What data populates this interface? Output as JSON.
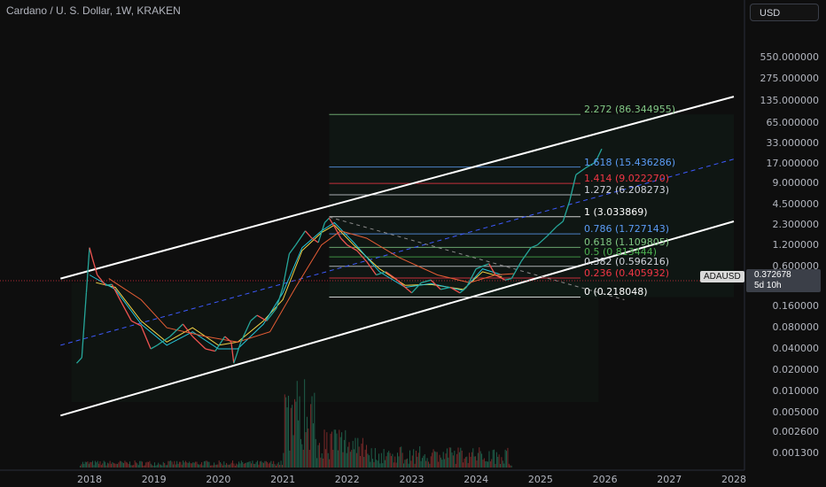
{
  "header": {
    "title": "Cardano / U. S. Dollar, 1W, KRAKEN",
    "currency_button": "USD"
  },
  "price_scale": {
    "ticks": [
      "550.000000",
      "275.000000",
      "135.000000",
      "65.000000",
      "33.000000",
      "17.000000",
      "9.000000",
      "4.500000",
      "2.300000",
      "1.200000",
      "0.600000",
      "0.160000",
      "0.080000",
      "0.040000",
      "0.020000",
      "0.010000",
      "0.005000",
      "0.002600",
      "0.001300"
    ]
  },
  "time_axis": {
    "ticks": [
      "2018",
      "2019",
      "2020",
      "2021",
      "2022",
      "2023",
      "2024",
      "2025",
      "2026",
      "2027",
      "2028"
    ]
  },
  "fib_levels": [
    {
      "ratio": "2.272",
      "price": "86.344955",
      "color": "#81c784"
    },
    {
      "ratio": "1.618",
      "price": "15.436286",
      "color": "#5b9cf6"
    },
    {
      "ratio": "1.414",
      "price": "9.022270",
      "color": "#f23645"
    },
    {
      "ratio": "1.272",
      "price": "6.208273",
      "color": "#d1d4dc"
    },
    {
      "ratio": "1",
      "price": "3.033869",
      "color": "#ffffff"
    },
    {
      "ratio": "0.786",
      "price": "1.727143",
      "color": "#5b9cf6"
    },
    {
      "ratio": "0.618",
      "price": "1.109805",
      "color": "#81c784"
    },
    {
      "ratio": "0.5",
      "price": "0.813444",
      "color": "#4caf50"
    },
    {
      "ratio": "0.382",
      "price": "0.596216",
      "color": "#d1d4dc"
    },
    {
      "ratio": "0.236",
      "price": "0.405932",
      "color": "#f23645"
    },
    {
      "ratio": "0",
      "price": "0.218048",
      "color": "#ffffff"
    }
  ],
  "last_price": {
    "symbol": "ADAUSD",
    "price": "0.372678",
    "countdown": "5d 10h"
  },
  "chart_data": {
    "type": "line",
    "title": "Cardano / U. S. Dollar, 1W, KRAKEN",
    "y_scale": "log",
    "ylim": [
      0.001,
      900
    ],
    "xlim": [
      2017.6,
      2028.3
    ],
    "price_path": [
      [
        2017.8,
        0.025
      ],
      [
        2017.88,
        0.03
      ],
      [
        2017.95,
        0.25
      ],
      [
        2018.0,
        1.1
      ],
      [
        2018.05,
        0.75
      ],
      [
        2018.12,
        0.45
      ],
      [
        2018.25,
        0.32
      ],
      [
        2018.35,
        0.33
      ],
      [
        2018.5,
        0.18
      ],
      [
        2018.65,
        0.1
      ],
      [
        2018.8,
        0.085
      ],
      [
        2018.95,
        0.04
      ],
      [
        2019.05,
        0.045
      ],
      [
        2019.25,
        0.06
      ],
      [
        2019.45,
        0.09
      ],
      [
        2019.6,
        0.06
      ],
      [
        2019.8,
        0.04
      ],
      [
        2019.95,
        0.037
      ],
      [
        2020.1,
        0.06
      ],
      [
        2020.2,
        0.05
      ],
      [
        2020.24,
        0.025
      ],
      [
        2020.35,
        0.05
      ],
      [
        2020.5,
        0.1
      ],
      [
        2020.6,
        0.12
      ],
      [
        2020.75,
        0.1
      ],
      [
        2020.9,
        0.15
      ],
      [
        2021.0,
        0.3
      ],
      [
        2021.1,
        0.9
      ],
      [
        2021.2,
        1.2
      ],
      [
        2021.35,
        1.9
      ],
      [
        2021.45,
        1.5
      ],
      [
        2021.55,
        1.3
      ],
      [
        2021.65,
        2.5
      ],
      [
        2021.72,
        2.9
      ],
      [
        2021.8,
        2.2
      ],
      [
        2021.9,
        1.5
      ],
      [
        2022.0,
        1.2
      ],
      [
        2022.15,
        1.0
      ],
      [
        2022.3,
        0.7
      ],
      [
        2022.45,
        0.45
      ],
      [
        2022.6,
        0.5
      ],
      [
        2022.75,
        0.4
      ],
      [
        2022.9,
        0.3
      ],
      [
        2023.0,
        0.25
      ],
      [
        2023.15,
        0.35
      ],
      [
        2023.3,
        0.38
      ],
      [
        2023.45,
        0.28
      ],
      [
        2023.6,
        0.3
      ],
      [
        2023.75,
        0.25
      ],
      [
        2023.85,
        0.3
      ],
      [
        2024.0,
        0.55
      ],
      [
        2024.1,
        0.6
      ],
      [
        2024.2,
        0.65
      ],
      [
        2024.3,
        0.45
      ],
      [
        2024.45,
        0.38
      ],
      [
        2024.55,
        0.4
      ],
      [
        2024.7,
        0.7
      ],
      [
        2024.85,
        1.1
      ],
      [
        2024.95,
        1.2
      ],
      [
        2025.1,
        1.6
      ],
      [
        2025.25,
        2.2
      ],
      [
        2025.35,
        2.6
      ],
      [
        2025.45,
        5.0
      ],
      [
        2025.55,
        12
      ],
      [
        2025.7,
        15
      ],
      [
        2025.85,
        18
      ],
      [
        2025.95,
        28
      ]
    ],
    "ma_series": [
      {
        "name": "",
        "color": "#f5d547",
        "points": [
          [
            2018.1,
            0.35
          ],
          [
            2018.4,
            0.3
          ],
          [
            2018.8,
            0.1
          ],
          [
            2019.2,
            0.05
          ],
          [
            2019.6,
            0.08
          ],
          [
            2020.0,
            0.045
          ],
          [
            2020.3,
            0.05
          ],
          [
            2020.7,
            0.1
          ],
          [
            2021.0,
            0.2
          ],
          [
            2021.3,
            1.0
          ],
          [
            2021.6,
            1.8
          ],
          [
            2021.8,
            2.3
          ],
          [
            2022.1,
            1.2
          ],
          [
            2022.5,
            0.55
          ],
          [
            2022.9,
            0.32
          ],
          [
            2023.3,
            0.33
          ],
          [
            2023.8,
            0.28
          ],
          [
            2024.1,
            0.5
          ],
          [
            2024.4,
            0.42
          ]
        ]
      },
      {
        "name": "",
        "color": "#26c6da",
        "points": [
          [
            2018.0,
            0.45
          ],
          [
            2018.4,
            0.28
          ],
          [
            2018.8,
            0.09
          ],
          [
            2019.2,
            0.045
          ],
          [
            2019.6,
            0.07
          ],
          [
            2020.0,
            0.04
          ],
          [
            2020.3,
            0.04
          ],
          [
            2020.7,
            0.09
          ],
          [
            2021.0,
            0.25
          ],
          [
            2021.3,
            1.1
          ],
          [
            2021.6,
            1.9
          ],
          [
            2021.8,
            2.5
          ],
          [
            2022.1,
            1.3
          ],
          [
            2022.5,
            0.5
          ],
          [
            2022.9,
            0.3
          ],
          [
            2023.3,
            0.34
          ],
          [
            2023.8,
            0.27
          ],
          [
            2024.1,
            0.55
          ],
          [
            2024.4,
            0.45
          ]
        ]
      },
      {
        "name": "",
        "color": "#e65d35",
        "points": [
          [
            2018.3,
            0.4
          ],
          [
            2018.8,
            0.2
          ],
          [
            2019.2,
            0.08
          ],
          [
            2019.8,
            0.06
          ],
          [
            2020.3,
            0.05
          ],
          [
            2020.8,
            0.07
          ],
          [
            2021.2,
            0.3
          ],
          [
            2021.6,
            1.2
          ],
          [
            2021.9,
            1.9
          ],
          [
            2022.3,
            1.5
          ],
          [
            2022.8,
            0.8
          ],
          [
            2023.4,
            0.45
          ],
          [
            2023.9,
            0.35
          ],
          [
            2024.3,
            0.45
          ],
          [
            2024.6,
            0.47
          ]
        ]
      }
    ],
    "channel": {
      "upper": [
        [
          2017.55,
          0.4
        ],
        [
          2028.0,
          155
        ]
      ],
      "lower": [
        [
          2017.55,
          0.0045
        ],
        [
          2028.0,
          2.6
        ]
      ],
      "mid": [
        [
          2017.55,
          0.045
        ],
        [
          2028.0,
          20
        ]
      ]
    }
  }
}
